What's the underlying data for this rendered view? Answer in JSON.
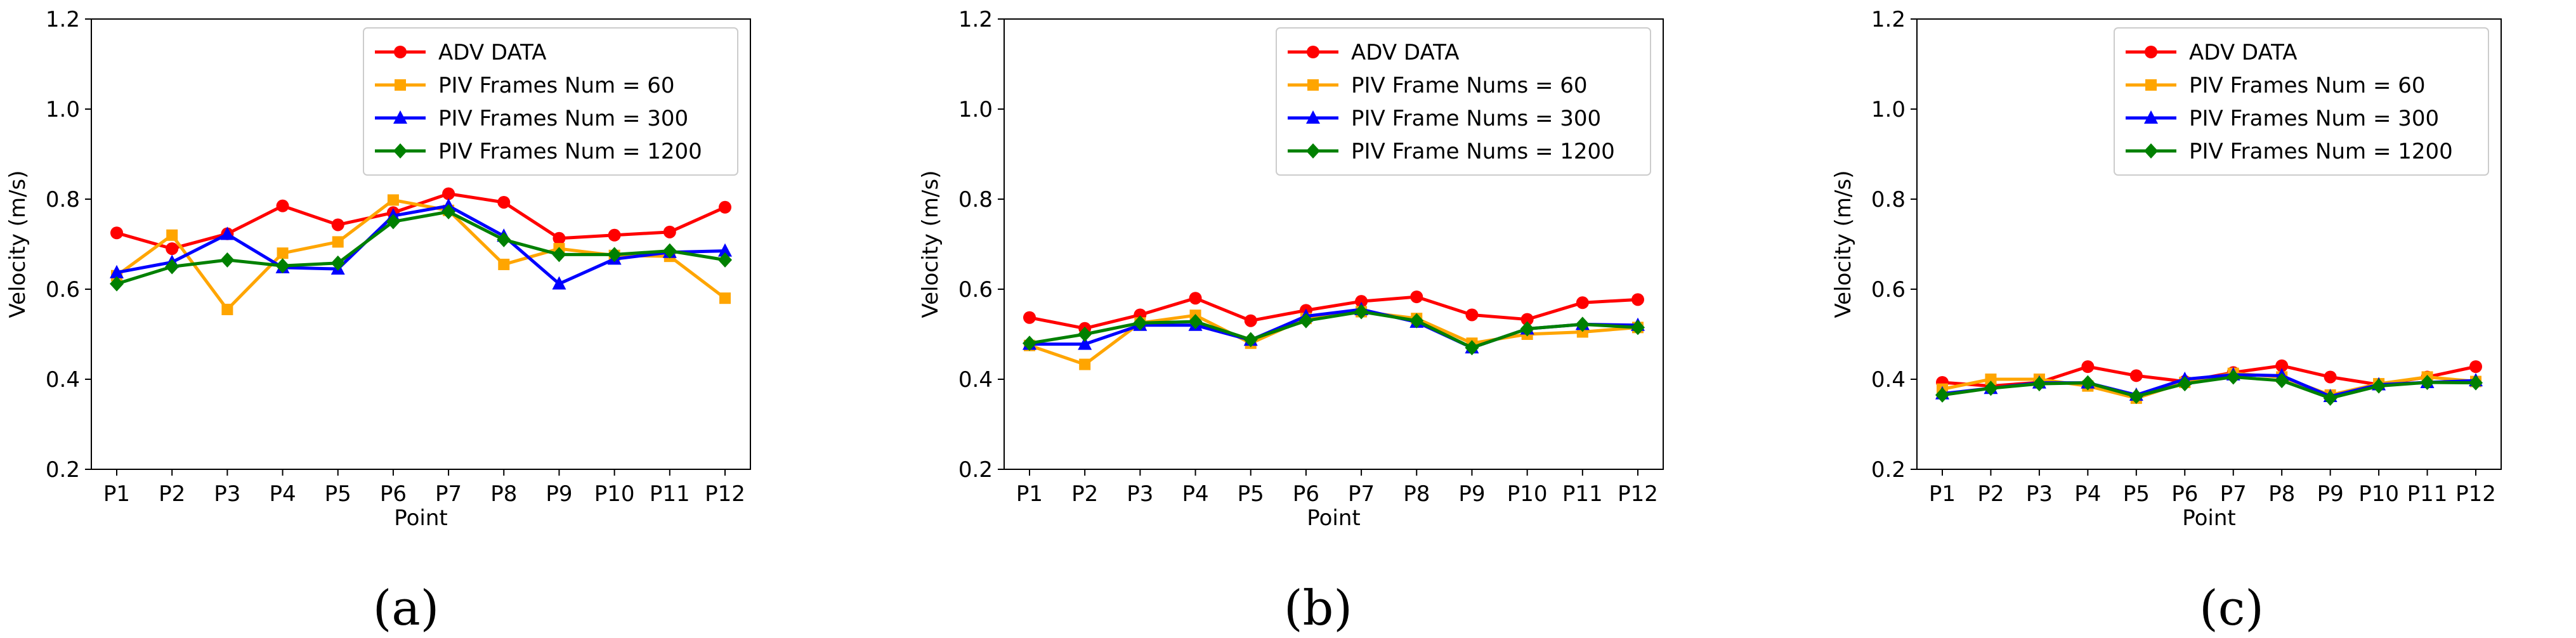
{
  "chart_data": [
    {
      "type": "line",
      "caption": "(a)",
      "xlabel": "Point",
      "ylabel": "Velocity (m/s)",
      "ylim": [
        0.2,
        1.2
      ],
      "yticks": [
        "0.2",
        "0.4",
        "0.6",
        "0.8",
        "1.0",
        "1.2"
      ],
      "categories": [
        "P1",
        "P2",
        "P3",
        "P4",
        "P5",
        "P6",
        "P7",
        "P8",
        "P9",
        "P10",
        "P11",
        "P12"
      ],
      "legend_position": "top-right",
      "series": [
        {
          "name": "ADV DATA",
          "color": "#ff0000",
          "marker": "circle",
          "values": [
            0.725,
            0.69,
            0.723,
            0.785,
            0.743,
            0.77,
            0.812,
            0.793,
            0.713,
            0.72,
            0.727,
            0.782
          ]
        },
        {
          "name": "PIV Frames Num = 60",
          "color": "#ffa500",
          "marker": "square",
          "values": [
            0.63,
            0.72,
            0.555,
            0.68,
            0.705,
            0.798,
            0.775,
            0.655,
            0.69,
            0.675,
            0.673,
            0.58
          ]
        },
        {
          "name": "PIV Frames Num = 300",
          "color": "#0000ff",
          "marker": "triangle",
          "values": [
            0.637,
            0.66,
            0.722,
            0.648,
            0.645,
            0.763,
            0.785,
            0.718,
            0.612,
            0.667,
            0.682,
            0.685
          ]
        },
        {
          "name": "PIV Frames Num = 1200",
          "color": "#008000",
          "marker": "diamond",
          "values": [
            0.612,
            0.65,
            0.665,
            0.652,
            0.658,
            0.75,
            0.772,
            0.71,
            0.677,
            0.677,
            0.685,
            0.665
          ]
        }
      ]
    },
    {
      "type": "line",
      "caption": "(b)",
      "xlabel": "Point",
      "ylabel": "Velocity (m/s)",
      "ylim": [
        0.2,
        1.2
      ],
      "yticks": [
        "0.2",
        "0.4",
        "0.6",
        "0.8",
        "1.0",
        "1.2"
      ],
      "categories": [
        "P1",
        "P2",
        "P3",
        "P4",
        "P5",
        "P6",
        "P7",
        "P8",
        "P9",
        "P10",
        "P11",
        "P12"
      ],
      "legend_position": "top-right",
      "series": [
        {
          "name": "ADV DATA",
          "color": "#ff0000",
          "marker": "circle",
          "values": [
            0.537,
            0.513,
            0.543,
            0.58,
            0.53,
            0.553,
            0.573,
            0.583,
            0.543,
            0.533,
            0.57,
            0.577
          ]
        },
        {
          "name": "PIV Frame Nums = 60",
          "color": "#ffa500",
          "marker": "square",
          "values": [
            0.475,
            0.433,
            0.525,
            0.542,
            0.48,
            0.535,
            0.55,
            0.535,
            0.48,
            0.5,
            0.505,
            0.515
          ]
        },
        {
          "name": "PIV Frame Nums = 300",
          "color": "#0000ff",
          "marker": "triangle",
          "values": [
            0.478,
            0.478,
            0.52,
            0.52,
            0.487,
            0.54,
            0.555,
            0.527,
            0.47,
            0.512,
            0.522,
            0.52
          ]
        },
        {
          "name": "PIV Frame Nums = 1200",
          "color": "#008000",
          "marker": "diamond",
          "values": [
            0.48,
            0.5,
            0.525,
            0.528,
            0.488,
            0.53,
            0.55,
            0.53,
            0.47,
            0.512,
            0.522,
            0.515
          ]
        }
      ]
    },
    {
      "type": "line",
      "caption": "(c)",
      "xlabel": "Point",
      "ylabel": "Velocity (m/s)",
      "ylim": [
        0.2,
        1.2
      ],
      "yticks": [
        "0.2",
        "0.4",
        "0.6",
        "0.8",
        "1.0",
        "1.2"
      ],
      "categories": [
        "P1",
        "P2",
        "P3",
        "P4",
        "P5",
        "P6",
        "P7",
        "P8",
        "P9",
        "P10",
        "P11",
        "P12"
      ],
      "legend_position": "top-right",
      "series": [
        {
          "name": "ADV DATA",
          "color": "#ff0000",
          "marker": "circle",
          "values": [
            0.393,
            0.385,
            0.393,
            0.428,
            0.408,
            0.395,
            0.415,
            0.43,
            0.405,
            0.388,
            0.405,
            0.428
          ]
        },
        {
          "name": "PIV Frames Num = 60",
          "color": "#ffa500",
          "marker": "square",
          "values": [
            0.378,
            0.4,
            0.4,
            0.385,
            0.358,
            0.393,
            0.413,
            0.405,
            0.365,
            0.39,
            0.405,
            0.395
          ]
        },
        {
          "name": "PIV Frames Num = 300",
          "color": "#0000ff",
          "marker": "triangle",
          "values": [
            0.368,
            0.38,
            0.392,
            0.392,
            0.365,
            0.4,
            0.41,
            0.408,
            0.362,
            0.388,
            0.393,
            0.397
          ]
        },
        {
          "name": "PIV Frames Num = 1200",
          "color": "#008000",
          "marker": "diamond",
          "values": [
            0.365,
            0.38,
            0.39,
            0.392,
            0.362,
            0.39,
            0.405,
            0.397,
            0.358,
            0.385,
            0.393,
            0.392
          ]
        }
      ]
    }
  ]
}
